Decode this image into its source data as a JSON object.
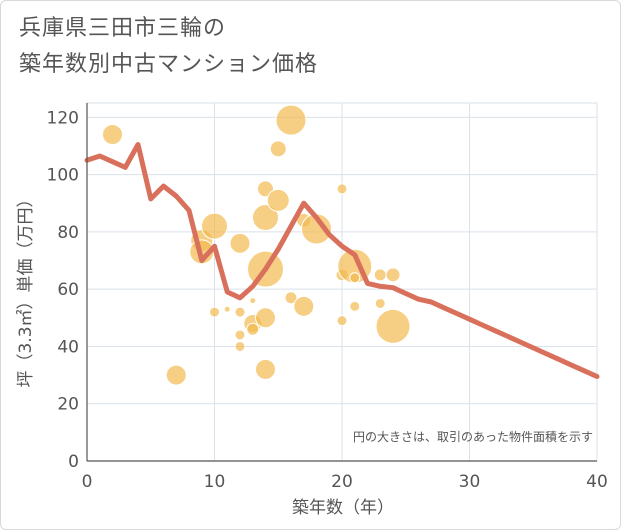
{
  "title": {
    "line1": "兵庫県三田市三輪の",
    "line2": "築年数別中古マンション価格"
  },
  "colors": {
    "bubble": "#f2b84b",
    "line": "#d9705c",
    "grid": "#d9e1ea",
    "axis": "#555555"
  },
  "chart_data": {
    "type": "scatter",
    "xlabel": "築年数（年）",
    "ylabel": "坪（3.3㎡）単価（万円）",
    "xlim": [
      0,
      40
    ],
    "ylim": [
      0,
      125
    ],
    "x_ticks": [
      "0",
      "10",
      "20",
      "30",
      "40"
    ],
    "y_ticks": [
      "0",
      "20",
      "40",
      "60",
      "80",
      "100",
      "120"
    ],
    "x_tick_values": [
      0,
      10,
      20,
      30,
      40
    ],
    "y_tick_values": [
      0,
      20,
      40,
      60,
      80,
      100,
      120
    ],
    "grid": true,
    "note": "円の大きさは、取引のあった物件面積を示す",
    "bubbles": [
      {
        "x": 2,
        "y": 114,
        "r": 10
      },
      {
        "x": 7,
        "y": 30,
        "r": 10
      },
      {
        "x": 9,
        "y": 77,
        "r": 11
      },
      {
        "x": 9,
        "y": 73,
        "r": 12
      },
      {
        "x": 10,
        "y": 82,
        "r": 13
      },
      {
        "x": 10,
        "y": 52,
        "r": 5
      },
      {
        "x": 11,
        "y": 53,
        "r": 3
      },
      {
        "x": 12,
        "y": 76,
        "r": 10
      },
      {
        "x": 12,
        "y": 52,
        "r": 5
      },
      {
        "x": 12,
        "y": 44,
        "r": 5
      },
      {
        "x": 12,
        "y": 40,
        "r": 5
      },
      {
        "x": 13,
        "y": 56,
        "r": 3
      },
      {
        "x": 13,
        "y": 48,
        "r": 9
      },
      {
        "x": 13,
        "y": 46,
        "r": 6
      },
      {
        "x": 14,
        "y": 67,
        "r": 18
      },
      {
        "x": 14,
        "y": 85,
        "r": 13
      },
      {
        "x": 14,
        "y": 95,
        "r": 8
      },
      {
        "x": 14,
        "y": 50,
        "r": 10
      },
      {
        "x": 14,
        "y": 32,
        "r": 10
      },
      {
        "x": 15,
        "y": 109,
        "r": 8
      },
      {
        "x": 15,
        "y": 91,
        "r": 11
      },
      {
        "x": 16,
        "y": 119,
        "r": 15
      },
      {
        "x": 16,
        "y": 57,
        "r": 6
      },
      {
        "x": 17,
        "y": 84,
        "r": 7
      },
      {
        "x": 17,
        "y": 54,
        "r": 10
      },
      {
        "x": 18,
        "y": 81,
        "r": 15
      },
      {
        "x": 20,
        "y": 95,
        "r": 5
      },
      {
        "x": 20,
        "y": 65,
        "r": 6
      },
      {
        "x": 20,
        "y": 49,
        "r": 5
      },
      {
        "x": 21,
        "y": 68,
        "r": 17
      },
      {
        "x": 21,
        "y": 64,
        "r": 5
      },
      {
        "x": 21,
        "y": 54,
        "r": 5
      },
      {
        "x": 23,
        "y": 65,
        "r": 6
      },
      {
        "x": 23,
        "y": 55,
        "r": 5
      },
      {
        "x": 24,
        "y": 65,
        "r": 7
      },
      {
        "x": 24,
        "y": 47,
        "r": 17
      }
    ],
    "trend": {
      "x": [
        0,
        1,
        2,
        3,
        4,
        5,
        6,
        7,
        8,
        9,
        10,
        11,
        12,
        13,
        14,
        15,
        16,
        17,
        18,
        19,
        20,
        21,
        22,
        23,
        24,
        25,
        26,
        27,
        28,
        29,
        30,
        31,
        32,
        33,
        34,
        35,
        36,
        37,
        38,
        39,
        40
      ],
      "y": [
        105,
        106.5,
        104.5,
        102.5,
        110.5,
        91.5,
        96,
        92.5,
        87.5,
        70,
        75,
        59,
        57,
        61,
        67,
        74,
        82,
        90,
        85,
        79,
        75,
        72,
        62,
        61,
        60.5,
        58.5,
        56.5,
        55.5,
        53.5,
        51.5,
        49.5,
        47.5,
        45.5,
        43.5,
        41.5,
        39.5,
        37.5,
        35.5,
        33.5,
        31.5,
        29.5
      ]
    }
  }
}
